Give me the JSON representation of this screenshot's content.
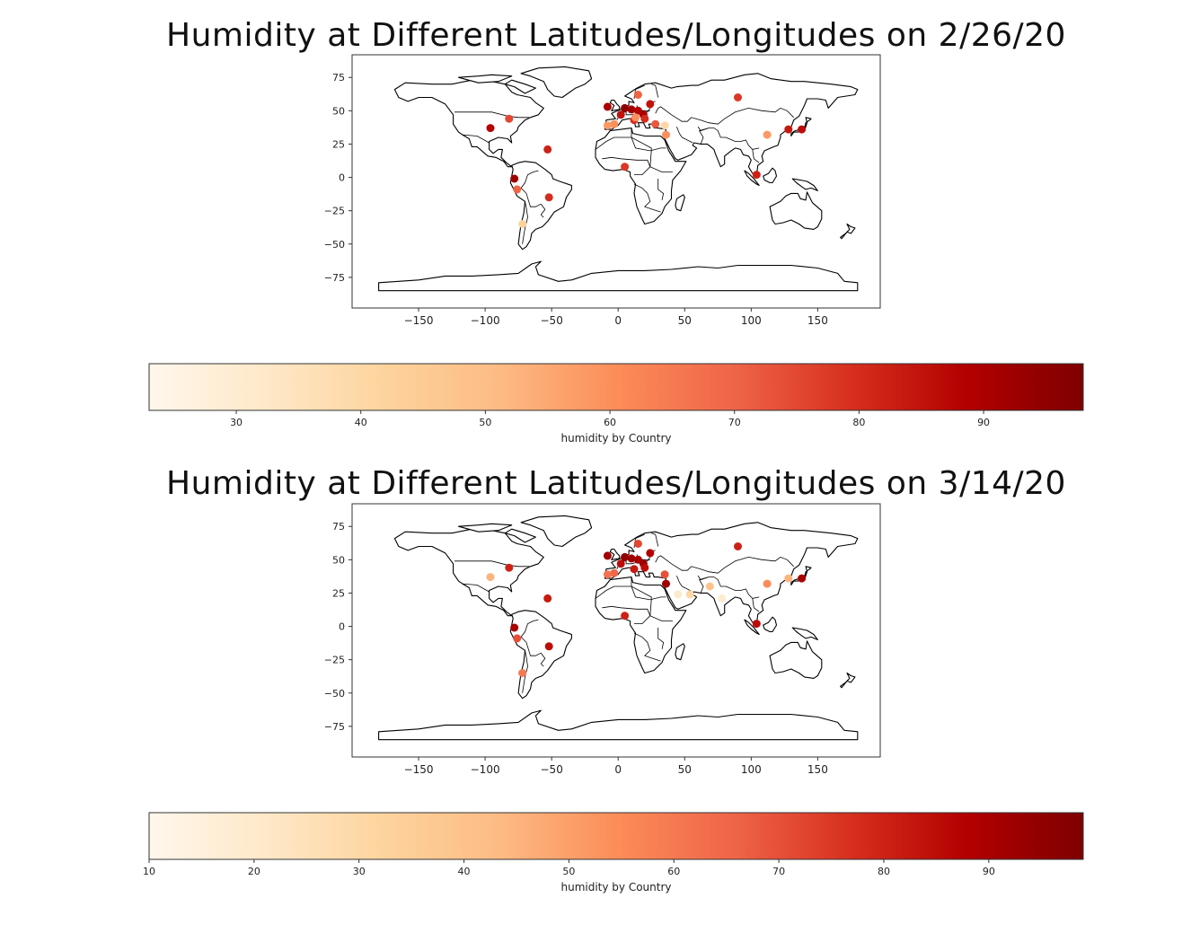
{
  "chart_data": [
    {
      "type": "scatter",
      "title": "Humidity at Different Latitudes/Longitudes on 2/26/20",
      "xlabel": "",
      "ylabel": "",
      "xlim": [
        -200,
        197
      ],
      "ylim": [
        -98,
        92
      ],
      "x_ticks": [
        -150,
        -100,
        -50,
        0,
        50,
        100,
        150
      ],
      "y_ticks": [
        75,
        50,
        25,
        0,
        -25,
        -50,
        -75
      ],
      "x_tick_labels": [
        "−150",
        "−100",
        "−50",
        "0",
        "50",
        "100",
        "150"
      ],
      "y_tick_labels": [
        "75",
        "50",
        "25",
        "0",
        "−25",
        "−50",
        "−75"
      ],
      "basemap": "world country boundaries",
      "colormap": "OrRd",
      "colorbar": {
        "label": "humidity by Country",
        "min": 23,
        "max": 98,
        "ticks": [
          30,
          40,
          50,
          60,
          70,
          80,
          90
        ],
        "tick_labels": [
          "30",
          "40",
          "50",
          "60",
          "70",
          "80",
          "90"
        ]
      },
      "points": [
        {
          "x": -96,
          "y": 37,
          "v": 88
        },
        {
          "x": -82,
          "y": 44,
          "v": 75
        },
        {
          "x": -53,
          "y": 21,
          "v": 82
        },
        {
          "x": -78,
          "y": -1,
          "v": 92
        },
        {
          "x": -76,
          "y": -9,
          "v": 70
        },
        {
          "x": -52,
          "y": -15,
          "v": 80
        },
        {
          "x": -72,
          "y": -35,
          "v": 42
        },
        {
          "x": -8,
          "y": 53,
          "v": 90
        },
        {
          "x": -3,
          "y": 40,
          "v": 60
        },
        {
          "x": -8,
          "y": 39,
          "v": 58
        },
        {
          "x": 2,
          "y": 47,
          "v": 85
        },
        {
          "x": 5,
          "y": 52,
          "v": 95
        },
        {
          "x": 10,
          "y": 51,
          "v": 92
        },
        {
          "x": 12,
          "y": 43,
          "v": 80
        },
        {
          "x": 15,
          "y": 50,
          "v": 88
        },
        {
          "x": 19,
          "y": 47,
          "v": 90
        },
        {
          "x": 15,
          "y": 62,
          "v": 70
        },
        {
          "x": 24,
          "y": 55,
          "v": 85
        },
        {
          "x": 20,
          "y": 44,
          "v": 80
        },
        {
          "x": 13,
          "y": 45,
          "v": 60
        },
        {
          "x": 28,
          "y": 40,
          "v": 72
        },
        {
          "x": 35,
          "y": 39,
          "v": 40
        },
        {
          "x": 36,
          "y": 32,
          "v": 60
        },
        {
          "x": 5,
          "y": 8,
          "v": 78
        },
        {
          "x": 90,
          "y": 60,
          "v": 78
        },
        {
          "x": 112,
          "y": 32,
          "v": 58
        },
        {
          "x": 128,
          "y": 36,
          "v": 84
        },
        {
          "x": 138,
          "y": 36,
          "v": 86
        },
        {
          "x": 104,
          "y": 2,
          "v": 82
        }
      ]
    },
    {
      "type": "scatter",
      "title": "Humidity at Different Latitudes/Longitudes on 3/14/20",
      "xlabel": "",
      "ylabel": "",
      "xlim": [
        -200,
        197
      ],
      "ylim": [
        -98,
        92
      ],
      "x_ticks": [
        -150,
        -100,
        -50,
        0,
        50,
        100,
        150
      ],
      "y_ticks": [
        75,
        50,
        25,
        0,
        -25,
        -50,
        -75
      ],
      "x_tick_labels": [
        "−150",
        "−100",
        "−50",
        "0",
        "50",
        "100",
        "150"
      ],
      "y_tick_labels": [
        "75",
        "50",
        "25",
        "0",
        "−25",
        "−50",
        "−75"
      ],
      "basemap": "world country boundaries",
      "colormap": "OrRd",
      "colorbar": {
        "label": "humidity by Country",
        "min": 10,
        "max": 99,
        "ticks": [
          10,
          20,
          30,
          40,
          50,
          60,
          70,
          80,
          90
        ],
        "tick_labels": [
          "10",
          "20",
          "30",
          "40",
          "50",
          "60",
          "70",
          "80",
          "90"
        ]
      },
      "points": [
        {
          "x": -96,
          "y": 37,
          "v": 45
        },
        {
          "x": -82,
          "y": 44,
          "v": 80
        },
        {
          "x": -53,
          "y": 21,
          "v": 82
        },
        {
          "x": -78,
          "y": -1,
          "v": 90
        },
        {
          "x": -76,
          "y": -9,
          "v": 70
        },
        {
          "x": -52,
          "y": -15,
          "v": 85
        },
        {
          "x": -72,
          "y": -35,
          "v": 60
        },
        {
          "x": -8,
          "y": 53,
          "v": 92
        },
        {
          "x": -3,
          "y": 40,
          "v": 65
        },
        {
          "x": -8,
          "y": 39,
          "v": 62
        },
        {
          "x": 2,
          "y": 47,
          "v": 85
        },
        {
          "x": 5,
          "y": 52,
          "v": 95
        },
        {
          "x": 10,
          "y": 51,
          "v": 92
        },
        {
          "x": 12,
          "y": 43,
          "v": 82
        },
        {
          "x": 15,
          "y": 50,
          "v": 90
        },
        {
          "x": 19,
          "y": 47,
          "v": 92
        },
        {
          "x": 15,
          "y": 62,
          "v": 72
        },
        {
          "x": 24,
          "y": 55,
          "v": 88
        },
        {
          "x": 20,
          "y": 44,
          "v": 85
        },
        {
          "x": 35,
          "y": 39,
          "v": 70
        },
        {
          "x": 36,
          "y": 32,
          "v": 92
        },
        {
          "x": 45,
          "y": 24,
          "v": 20
        },
        {
          "x": 54,
          "y": 24,
          "v": 30
        },
        {
          "x": 69,
          "y": 30,
          "v": 40
        },
        {
          "x": 78,
          "y": 21,
          "v": 18
        },
        {
          "x": 5,
          "y": 8,
          "v": 80
        },
        {
          "x": 90,
          "y": 60,
          "v": 80
        },
        {
          "x": 112,
          "y": 32,
          "v": 55
        },
        {
          "x": 128,
          "y": 36,
          "v": 45
        },
        {
          "x": 138,
          "y": 36,
          "v": 90
        },
        {
          "x": 104,
          "y": 2,
          "v": 85
        }
      ]
    }
  ]
}
